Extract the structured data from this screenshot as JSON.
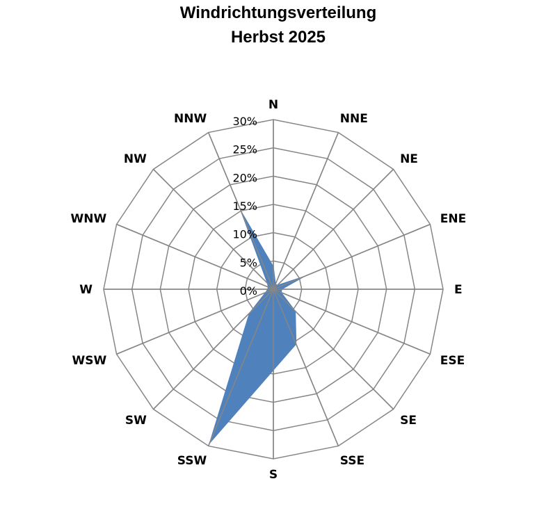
{
  "chart_data": {
    "type": "radar",
    "title": "Windrichtungsverteilung",
    "subtitle": "Herbst 2025",
    "categories": [
      "N",
      "NNE",
      "NE",
      "ENE",
      "E",
      "ESE",
      "SE",
      "SSE",
      "S",
      "SSW",
      "SW",
      "WSW",
      "W",
      "WNW",
      "NW",
      "NNW"
    ],
    "values": [
      4,
      1,
      1,
      6,
      1.5,
      1.5,
      5.5,
      10.5,
      14.3,
      29.5,
      6,
      1.5,
      1,
      1,
      1.5,
      15
    ],
    "unit": "%",
    "rlim": [
      0,
      30
    ],
    "ticks": [
      "0%",
      "5%",
      "10%",
      "15%",
      "20%",
      "25%",
      "30%"
    ],
    "tick_values": [
      0,
      5,
      10,
      15,
      20,
      25,
      30
    ],
    "grid": true,
    "legend": "none",
    "fill_color": "#4f81bd",
    "grid_color": "#868686"
  }
}
